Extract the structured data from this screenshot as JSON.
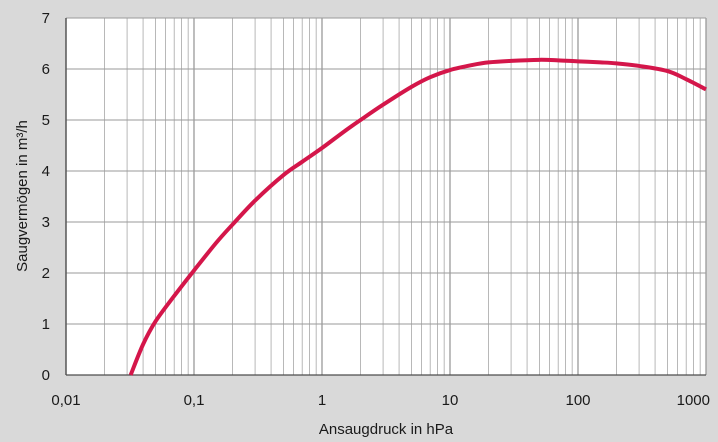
{
  "chart_data": {
    "type": "line",
    "title": "",
    "xlabel": "Ansaugdruck in hPa",
    "ylabel": "Saugvermögen in m³/h",
    "x_scale": "log",
    "xlim": [
      0.01,
      1000
    ],
    "ylim": [
      0,
      7
    ],
    "x_ticks": [
      0.01,
      0.1,
      1,
      10,
      100,
      1000
    ],
    "x_tick_labels": [
      "0,01",
      "0,1",
      "1",
      "10",
      "100",
      "1000"
    ],
    "y_ticks": [
      0,
      1,
      2,
      3,
      4,
      5,
      6,
      7
    ],
    "y_tick_labels": [
      "0",
      "1",
      "2",
      "3",
      "4",
      "5",
      "6",
      "7"
    ],
    "grid": true,
    "legend": "none",
    "colors": {
      "background": "#d9d9d9",
      "plot_area": "#ffffff",
      "grid": "#9a9a9a",
      "axis": "#4d4d4d",
      "line": "#d4164a"
    },
    "series": [
      {
        "x": [
          0.032,
          0.04,
          0.05,
          0.07,
          0.1,
          0.15,
          0.2,
          0.3,
          0.5,
          0.7,
          1,
          1.5,
          2,
          3,
          5,
          7,
          10,
          15,
          20,
          30,
          50,
          70,
          100,
          150,
          200,
          300,
          500,
          700,
          1000
        ],
        "y": [
          0,
          0.6,
          1.05,
          1.55,
          2.05,
          2.6,
          2.95,
          3.42,
          3.92,
          4.18,
          4.45,
          4.78,
          5.0,
          5.3,
          5.65,
          5.84,
          5.98,
          6.08,
          6.13,
          6.16,
          6.18,
          6.17,
          6.15,
          6.13,
          6.11,
          6.06,
          5.96,
          5.8,
          5.6
        ]
      }
    ]
  }
}
